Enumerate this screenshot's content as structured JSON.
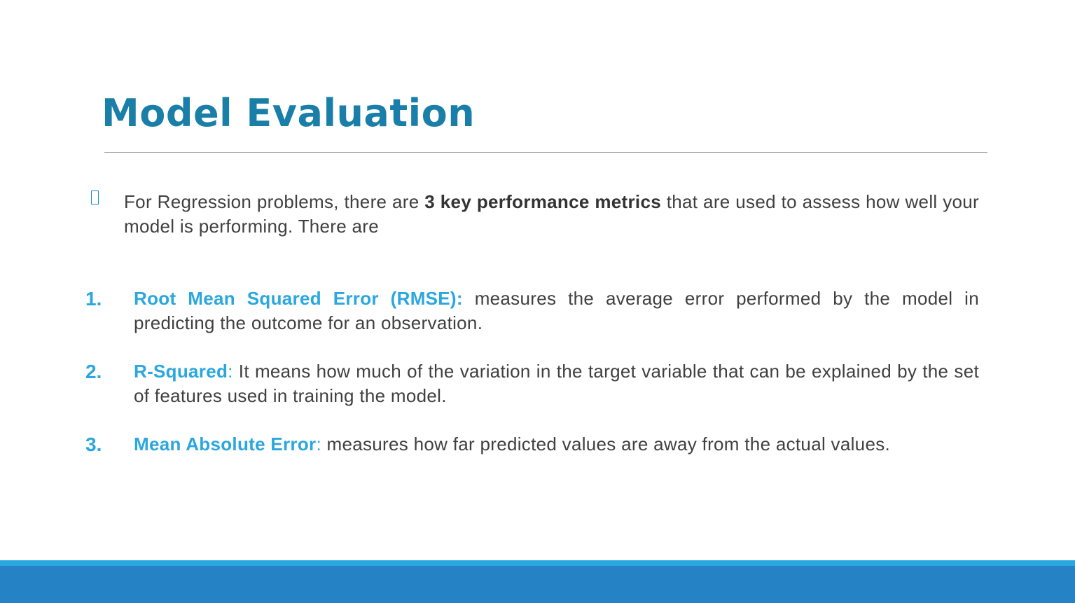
{
  "slide": {
    "title": "Model Evaluation",
    "intro": {
      "prefix": "For Regression problems, there are ",
      "emphasis": "3 key performance metrics",
      "suffix": " that are used to assess how well your model is performing. There are"
    },
    "metrics": [
      {
        "number": "1.",
        "term": "Root Mean Squared Error (RMSE):",
        "separator": "",
        "description": " measures the average error performed by the model in predicting the outcome for an observation."
      },
      {
        "number": "2.",
        "term": "R-Squared",
        "separator": ":",
        "description": " It means how much of the variation in the target variable that can be explained by the set of features used in training the model."
      },
      {
        "number": "3.",
        "term": "Mean Absolute Error",
        "separator": ":",
        "description": " measures how far predicted values are away from the actual values."
      }
    ]
  },
  "icons": {
    "bullet": "square-bullet-icon"
  },
  "colors": {
    "title": "#1a7fa8",
    "accent": "#2aa7df",
    "body_text": "#404040",
    "footer_light": "#2aa7df",
    "footer_dark": "#2482c5",
    "rule": "#9a9a9a"
  }
}
